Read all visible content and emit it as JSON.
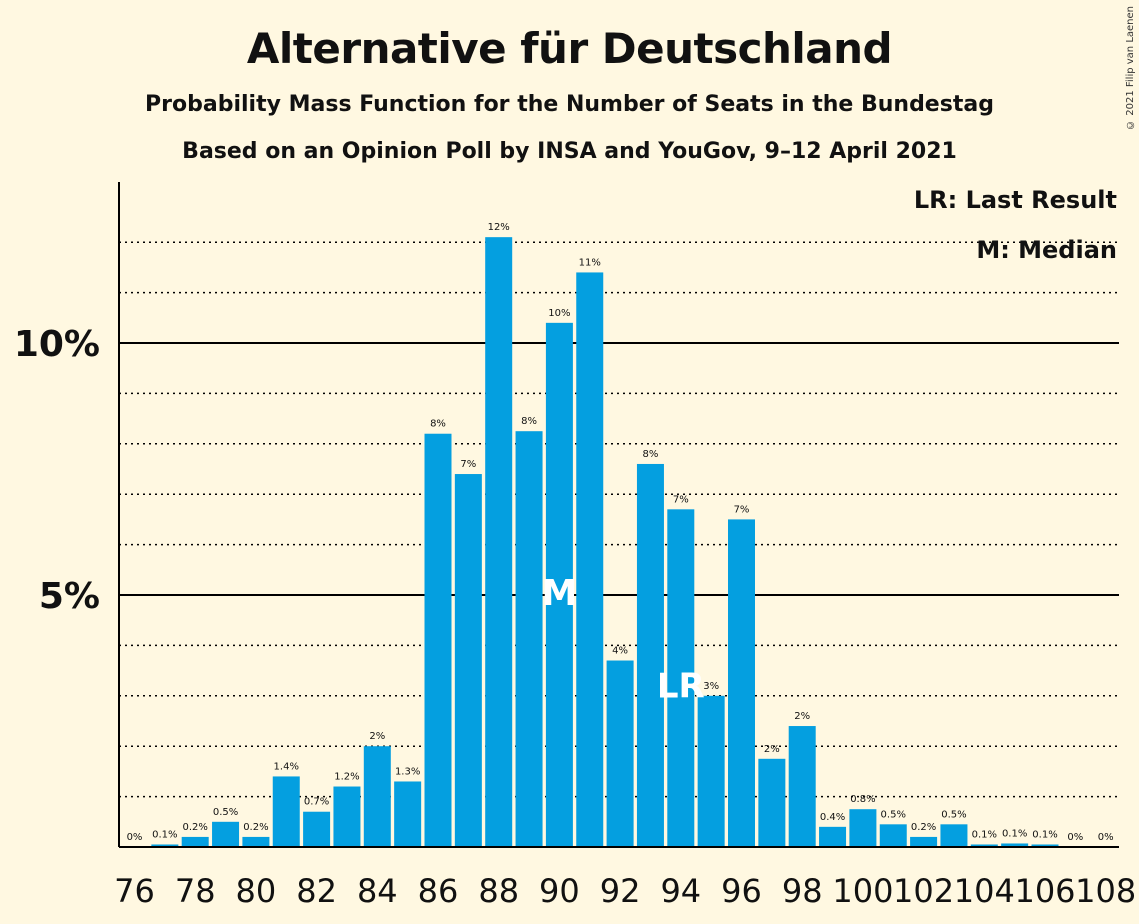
{
  "title": "Alternative für Deutschland",
  "subtitle": "Probability Mass Function for the Number of Seats in the Bundestag",
  "subtitle2": "Based on an Opinion Poll by INSA and YouGov, 9–12 April 2021",
  "copyright": "© 2021 Filip van Laenen",
  "legend": {
    "lr": "LR: Last Result",
    "m": "M: Median"
  },
  "colors": {
    "bar": "#049fe0",
    "background": "#fff8e1",
    "axis": "#000000"
  },
  "chart_data": {
    "type": "bar",
    "x": [
      76,
      77,
      78,
      79,
      80,
      81,
      82,
      83,
      84,
      85,
      86,
      87,
      88,
      89,
      90,
      91,
      92,
      93,
      94,
      95,
      96,
      97,
      98,
      99,
      100,
      101,
      102,
      103,
      104,
      105,
      106,
      107,
      108
    ],
    "values": [
      0,
      0.05,
      0.2,
      0.5,
      0.2,
      1.4,
      0.7,
      1.2,
      2.0,
      1.3,
      8.2,
      7.4,
      12.1,
      8.25,
      10.4,
      11.4,
      3.7,
      7.6,
      6.7,
      3.0,
      6.5,
      1.75,
      2.4,
      0.4,
      0.75,
      0.45,
      0.2,
      0.45,
      0.05,
      0.07,
      0.05,
      0,
      0
    ],
    "bar_labels": [
      "0%",
      "0.1%",
      "0.2%",
      "0.5%",
      "0.2%",
      "1.4%",
      "0.7%",
      "1.2%",
      "2%",
      "1.3%",
      "8%",
      "7%",
      "12%",
      "8%",
      "10%",
      "11%",
      "4%",
      "8%",
      "7%",
      "3%",
      "7%",
      "2%",
      "2%",
      "0.4%",
      "0.8%",
      "0.5%",
      "0.2%",
      "0.5%",
      "0.1%",
      "0.1%",
      "0.1%",
      "0%",
      "0%"
    ],
    "x_tick_labels": [
      "76",
      "78",
      "80",
      "82",
      "84",
      "86",
      "88",
      "90",
      "92",
      "94",
      "96",
      "98",
      "100",
      "102",
      "104",
      "106",
      "108"
    ],
    "y_tick_labels": [
      "5%",
      "10%"
    ],
    "y_tick_values": [
      5,
      10
    ],
    "ylim": [
      0,
      13
    ],
    "grid": "dotted at every 1%, solid at 5% and 10%",
    "median": {
      "x": 90,
      "label": "M"
    },
    "last_result": {
      "x": 94,
      "label": "LR"
    },
    "legend_placement": "top-right"
  }
}
